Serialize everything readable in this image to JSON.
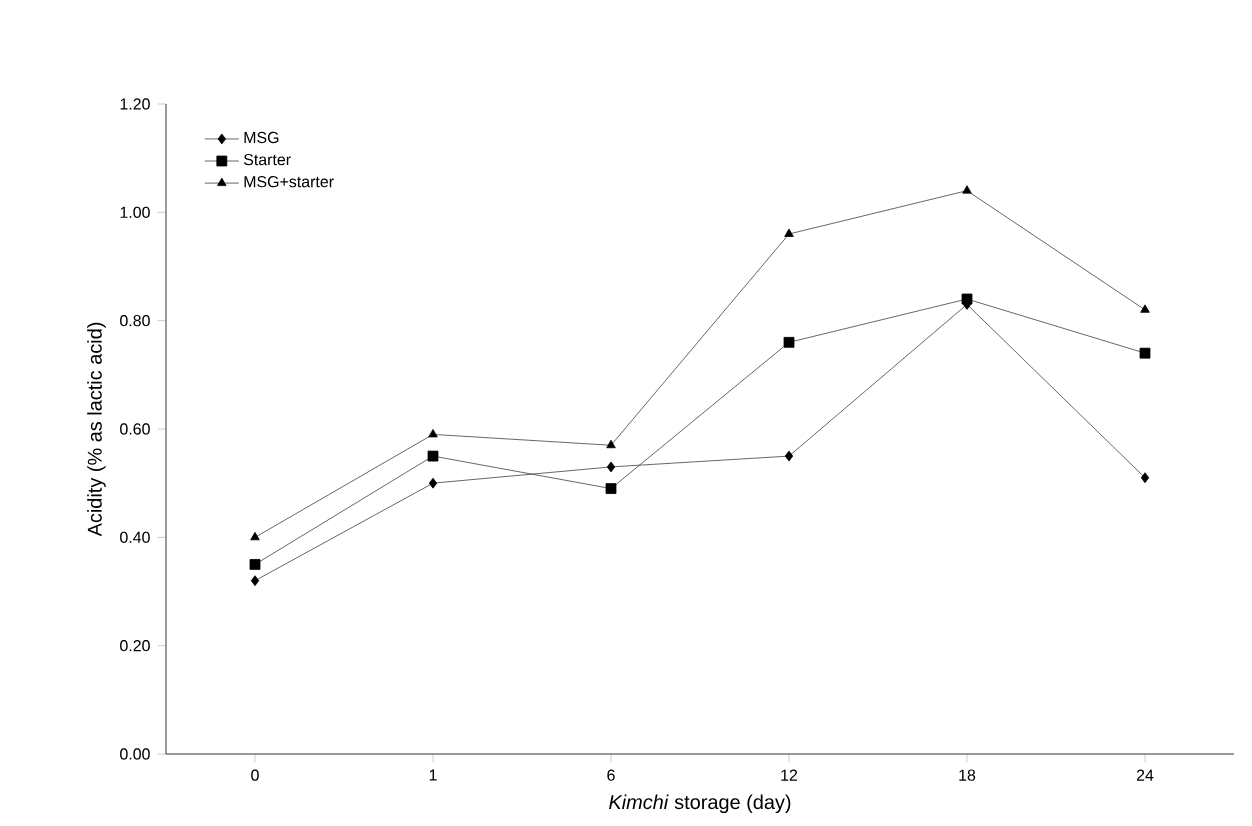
{
  "chart_data": {
    "type": "line",
    "xlabel": "*Kimchi* storage (day)",
    "ylabel": "Acidity (% as lactic acid)",
    "categories": [
      "0",
      "1",
      "6",
      "12",
      "18",
      "24"
    ],
    "ylim": [
      0,
      1.2
    ],
    "yticks": [
      {
        "value": 0,
        "label": "0.00"
      },
      {
        "value": 0.2,
        "label": "0.20"
      },
      {
        "value": 0.4,
        "label": "0.40"
      },
      {
        "value": 0.6,
        "label": "0.60"
      },
      {
        "value": 0.8,
        "label": "0.80"
      },
      {
        "value": 1.0,
        "label": "1.00"
      },
      {
        "value": 1.2,
        "label": "1.20"
      }
    ],
    "legend": "top left",
    "grid": false,
    "series": [
      {
        "name": "MSG",
        "color": "#404040",
        "marker": "diamond",
        "values": [
          0.32,
          0.5,
          0.53,
          0.55,
          0.83,
          0.51
        ]
      },
      {
        "name": "Starter",
        "color": "#404040",
        "marker": "square",
        "values": [
          0.35,
          0.55,
          0.49,
          0.76,
          0.84,
          0.74
        ]
      },
      {
        "name": "MSG+starter",
        "color": "#404040",
        "marker": "triangle",
        "values": [
          0.4,
          0.59,
          0.57,
          0.96,
          1.04,
          0.82
        ]
      }
    ]
  }
}
